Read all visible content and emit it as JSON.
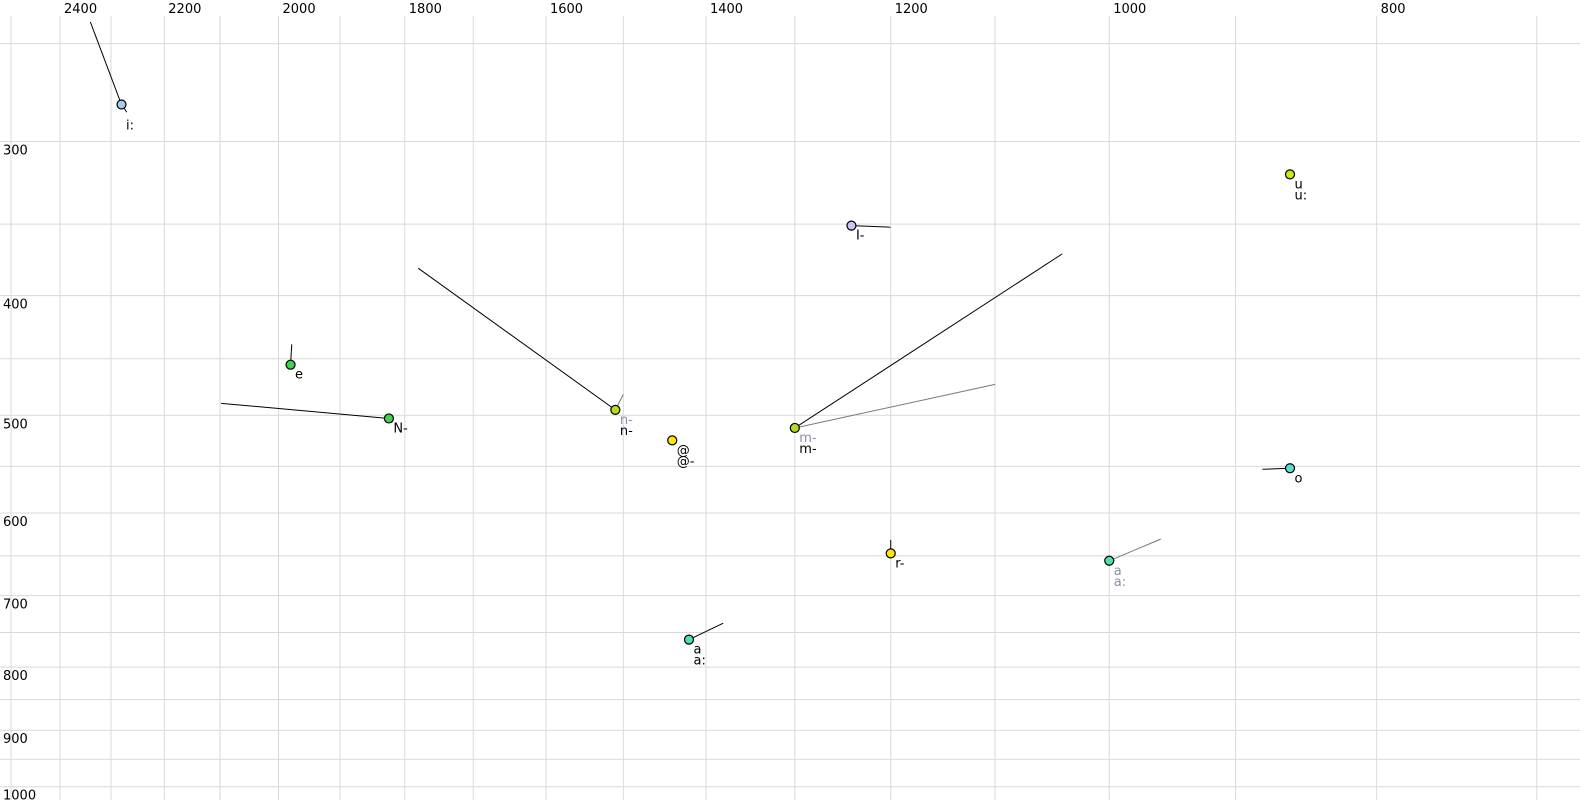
{
  "chart_data": {
    "type": "scatter",
    "title": "",
    "x_axis": {
      "tick_labels": [
        "2400",
        "2200",
        "2000",
        "1800",
        "1600",
        "1400",
        "1200",
        "1000",
        "800"
      ],
      "tick_values": [
        2400,
        2200,
        2000,
        1800,
        1600,
        1400,
        1200,
        1000,
        800
      ],
      "grid_min": 700,
      "grid_max": 2500,
      "grid_step": 100,
      "scale": "log",
      "direction": "values-decrease-rightward",
      "grid_on": true
    },
    "y_axis": {
      "tick_labels": [
        "300",
        "400",
        "500",
        "600",
        "700",
        "800",
        "900",
        "1000"
      ],
      "tick_values": [
        300,
        400,
        500,
        600,
        700,
        800,
        900,
        1000
      ],
      "grid_min": 250,
      "grid_max": 1000,
      "grid_step": 50,
      "scale": "log",
      "direction": "values-increase-downward",
      "grid_on": true
    },
    "points": [
      {
        "id": "i-long",
        "f2": 2280,
        "f1": 280,
        "fill": "#a9c8f0",
        "labels": [
          {
            "text": "i:",
            "color": "#000000",
            "row": 2
          }
        ],
        "lines": [
          {
            "to_f2": 2340,
            "to_f1": 240,
            "color": "#000000"
          },
          {
            "to_f2": 2270,
            "to_f1": 284,
            "color": "#000000"
          }
        ]
      },
      {
        "id": "u-u-long",
        "f2": 860,
        "f1": 319,
        "fill": "#c4ee0c",
        "labels": [
          {
            "text": "u",
            "color": "#000000",
            "row": 1
          },
          {
            "text": "u:",
            "color": "#000000",
            "row": 2
          }
        ],
        "lines": []
      },
      {
        "id": "I-retracted",
        "f2": 1240,
        "f1": 351,
        "fill": "#c9c9ef",
        "labels": [
          {
            "text": "I-",
            "color": "#000000",
            "row": 1
          }
        ],
        "lines": [
          {
            "to_f2": 1200,
            "to_f1": 352,
            "color": "#000000"
          }
        ]
      },
      {
        "id": "e",
        "f2": 1980,
        "f1": 455,
        "fill": "#3fd24f",
        "labels": [
          {
            "text": "e",
            "color": "#000000",
            "row": 1
          }
        ],
        "lines": [
          {
            "to_f2": 1978,
            "to_f1": 438,
            "color": "#000000"
          }
        ]
      },
      {
        "id": "N-retracted",
        "f2": 1824,
        "f1": 503,
        "fill": "#3fd24f",
        "labels": [
          {
            "text": "N-",
            "color": "#000000",
            "row": 1
          }
        ],
        "lines": [
          {
            "to_f2": 2098,
            "to_f1": 489,
            "color": "#000000"
          }
        ]
      },
      {
        "id": "n-retracted",
        "f2": 1510,
        "f1": 495,
        "fill": "#b4dd1e",
        "labels": [
          {
            "text": "n-",
            "color": "#8a8fa8",
            "row": 1
          },
          {
            "text": "n-",
            "color": "#000000",
            "row": 2
          }
        ],
        "lines": [
          {
            "to_f2": 1780,
            "to_f1": 380,
            "color": "#000000"
          },
          {
            "to_f2": 1500,
            "to_f1": 481,
            "color": "#787878"
          }
        ]
      },
      {
        "id": "schwa-schwa-retracted",
        "f2": 1440,
        "f1": 524,
        "fill": "#ffe800",
        "labels": [
          {
            "text": "@",
            "color": "#000000",
            "row": 1
          },
          {
            "text": "@-",
            "color": "#000000",
            "row": 2
          }
        ],
        "lines": []
      },
      {
        "id": "m-retracted",
        "f2": 1300,
        "f1": 512,
        "fill": "#b4dd1e",
        "labels": [
          {
            "text": "m-",
            "color": "#8a8fa8",
            "row": 1
          },
          {
            "text": "m-",
            "color": "#000000",
            "row": 2
          }
        ],
        "lines": [
          {
            "to_f2": 1040,
            "to_f1": 370,
            "color": "#000000"
          },
          {
            "to_f2": 1100,
            "to_f1": 472,
            "color": "#787878"
          }
        ]
      },
      {
        "id": "o",
        "f2": 860,
        "f1": 552,
        "fill": "#55e0cc",
        "labels": [
          {
            "text": "o",
            "color": "#000000",
            "row": 1
          }
        ],
        "lines": [
          {
            "to_f2": 880,
            "to_f1": 553,
            "color": "#000000"
          }
        ]
      },
      {
        "id": "r-retracted",
        "f2": 1200,
        "f1": 647,
        "fill": "#ffe800",
        "labels": [
          {
            "text": "r-",
            "color": "#000000",
            "row": 1
          }
        ],
        "lines": [
          {
            "to_f2": 1200,
            "to_f1": 631,
            "color": "#000000"
          }
        ]
      },
      {
        "id": "a-a-long-gray",
        "f2": 1000,
        "f1": 656,
        "fill": "#4fe0a8",
        "labels": [
          {
            "text": "a",
            "color": "#8a8fa8",
            "row": 1
          },
          {
            "text": "a:",
            "color": "#8a8fa8",
            "row": 2
          }
        ],
        "lines": [
          {
            "to_f2": 958,
            "to_f1": 630,
            "color": "#787878"
          }
        ]
      },
      {
        "id": "a-a-long-black",
        "f2": 1420,
        "f1": 760,
        "fill": "#4fe0a8",
        "labels": [
          {
            "text": "a",
            "color": "#000000",
            "row": 1
          },
          {
            "text": "a:",
            "color": "#000000",
            "row": 2
          }
        ],
        "lines": [
          {
            "to_f2": 1380,
            "to_f1": 737,
            "color": "#000000"
          }
        ]
      }
    ],
    "colors": {
      "background": "#ffffff",
      "gridline": "#d9d9d9",
      "axis_text": "#000000",
      "secondary_label": "#8a8fa8",
      "secondary_line": "#787878",
      "primary_line": "#000000"
    }
  }
}
